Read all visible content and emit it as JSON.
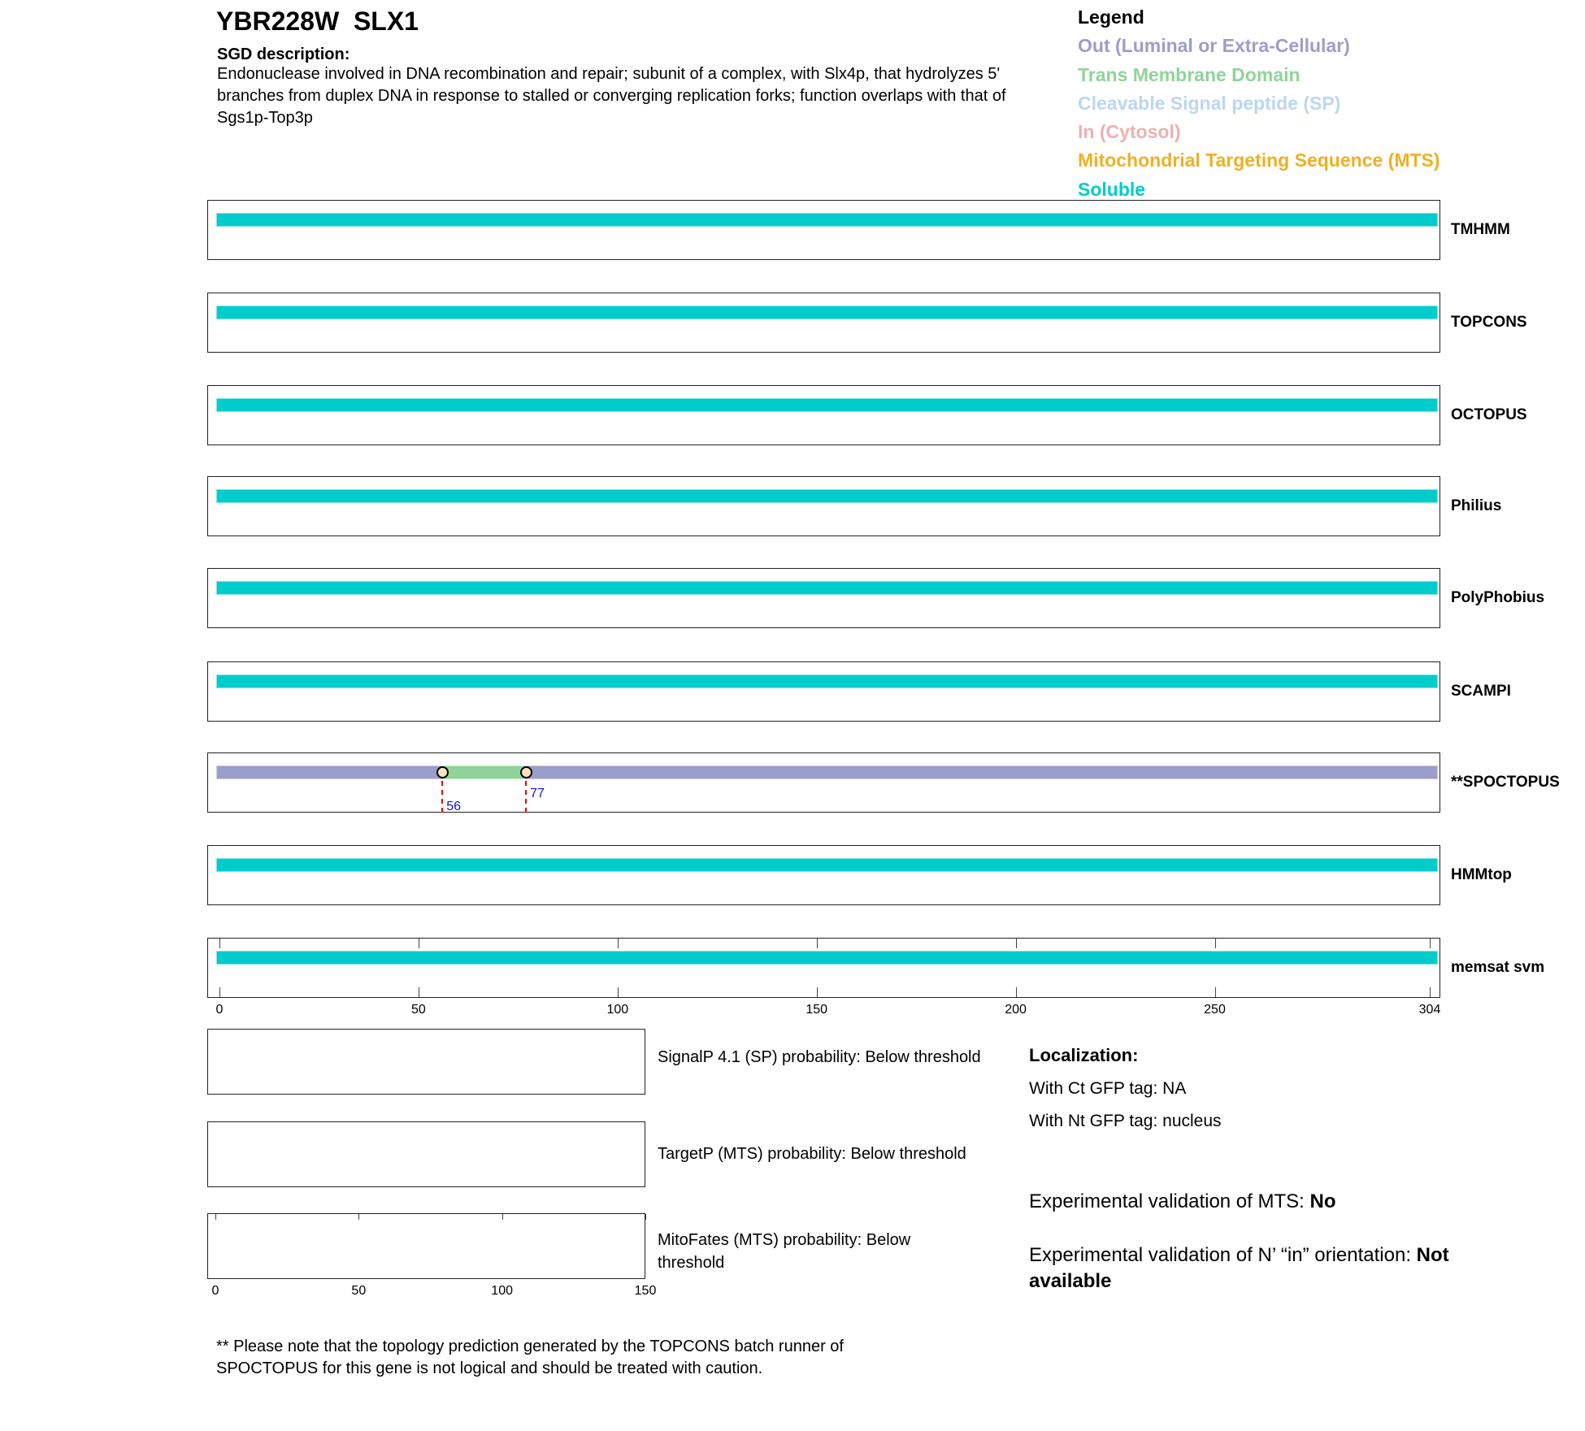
{
  "header": {
    "title": "YBR228W  SLX1",
    "desc_label": "SGD description:",
    "desc": "Endonuclease involved in DNA recombination and repair; subunit of a complex, with Slx4p, that hydrolyzes 5' branches from duplex DNA in response to stalled or converging replication forks; function overlaps with that of Sgs1p-Top3p"
  },
  "legend": {
    "title": "Legend",
    "items": [
      {
        "label": "Out (Luminal or Extra-Cellular)",
        "color": "#9b9dcb"
      },
      {
        "label": "Trans Membrane Domain",
        "color": "#90d39a"
      },
      {
        "label": "Cleavable Signal peptide (SP)",
        "color": "#bcd6f2"
      },
      {
        "label": "In (Cytosol)",
        "color": "#eeb0b0"
      },
      {
        "label": "Mitochondrial Targeting Sequence (MTS)",
        "color": "#efb024"
      },
      {
        "label": "Soluble",
        "color": "#00cccc"
      }
    ]
  },
  "chart_data": {
    "type": "topology-tracks",
    "length": 304,
    "xticks": [
      0,
      50,
      100,
      150,
      200,
      250,
      304
    ],
    "tracks": [
      {
        "name": "TMHMM",
        "segments": [
          {
            "start": 0,
            "end": 304,
            "type": "Soluble"
          }
        ]
      },
      {
        "name": "TOPCONS",
        "segments": [
          {
            "start": 0,
            "end": 304,
            "type": "Soluble"
          }
        ]
      },
      {
        "name": "OCTOPUS",
        "segments": [
          {
            "start": 0,
            "end": 304,
            "type": "Soluble"
          }
        ]
      },
      {
        "name": "Philius",
        "segments": [
          {
            "start": 0,
            "end": 304,
            "type": "Soluble"
          }
        ]
      },
      {
        "name": "PolyPhobius",
        "segments": [
          {
            "start": 0,
            "end": 304,
            "type": "Soluble"
          }
        ]
      },
      {
        "name": "SCAMPI",
        "segments": [
          {
            "start": 0,
            "end": 304,
            "type": "Soluble"
          }
        ]
      },
      {
        "name": "**SPOCTOPUS",
        "segments": [
          {
            "start": 0,
            "end": 56,
            "type": "Out"
          },
          {
            "start": 56,
            "end": 77,
            "type": "TM"
          },
          {
            "start": 77,
            "end": 304,
            "type": "Out"
          }
        ],
        "markers": [
          "56",
          "77"
        ]
      },
      {
        "name": "HMMtop",
        "segments": [
          {
            "start": 0,
            "end": 304,
            "type": "Soluble"
          }
        ]
      },
      {
        "name": "memsat svm",
        "segments": [
          {
            "start": 0,
            "end": 304,
            "type": "Soluble"
          }
        ]
      }
    ],
    "small_axis": {
      "range": [
        0,
        150
      ],
      "ticks": [
        0,
        50,
        100,
        150
      ]
    }
  },
  "probabilities": [
    "SignalP 4.1 (SP) probability: Below threshold",
    "TargetP (MTS) probability: Below threshold",
    "MitoFates (MTS) probability: Below threshold"
  ],
  "localization": {
    "title": "Localization:",
    "ct": "With Ct GFP tag: NA",
    "nt": "With Nt GFP tag: nucleus"
  },
  "validation": {
    "mts_label": "Experimental validation of MTS: ",
    "mts_value": "No",
    "orient_label": "Experimental validation of N’ “in” orientation: ",
    "orient_value": "Not available"
  },
  "footnote": "** Please note that the topology prediction generated by the TOPCONS batch runner of SPOCTOPUS for this gene is not logical and should be treated with caution."
}
